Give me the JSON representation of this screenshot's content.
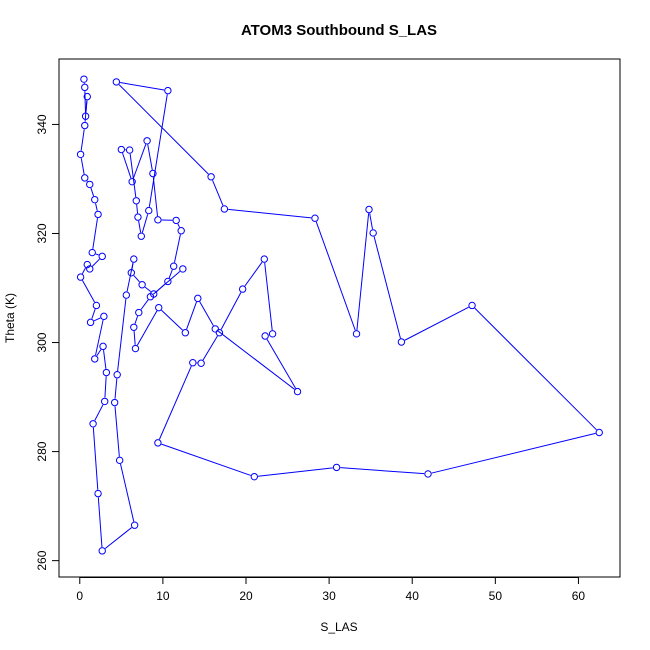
{
  "chart_data": {
    "type": "line",
    "title": "ATOM3 Southbound S_LAS",
    "xlabel": "S_LAS",
    "ylabel": "Theta (K)",
    "xlim": [
      -2.5,
      65
    ],
    "ylim": [
      257,
      352
    ],
    "xticks": [
      0,
      10,
      20,
      30,
      40,
      50,
      60
    ],
    "yticks": [
      260,
      280,
      300,
      320,
      340
    ],
    "grid": false,
    "legend": "none",
    "colors": {
      "series": "#0000ff",
      "axes": "#000000",
      "background": "#ffffff"
    },
    "markers": "open-circle",
    "series": [
      {
        "points": [
          [
            0.5,
            348.3
          ],
          [
            0.6,
            346.8
          ],
          [
            0.7,
            341.5
          ],
          [
            0.9,
            345.1
          ],
          [
            0.6,
            339.8
          ],
          [
            0.1,
            334.5
          ],
          [
            0.6,
            330.2
          ],
          [
            1.2,
            329.0
          ],
          [
            1.8,
            326.2
          ],
          [
            2.2,
            323.5
          ],
          [
            1.5,
            316.5
          ],
          [
            2.7,
            315.8
          ],
          [
            1.2,
            313.5
          ],
          [
            0.9,
            314.3
          ],
          [
            0.1,
            312.0
          ],
          [
            2.0,
            306.8
          ],
          [
            1.3,
            303.7
          ],
          [
            2.9,
            304.8
          ],
          [
            1.8,
            297.0
          ],
          [
            2.8,
            299.3
          ],
          [
            3.2,
            294.5
          ],
          [
            3.0,
            289.2
          ],
          [
            1.6,
            285.1
          ],
          [
            2.2,
            272.3
          ],
          [
            2.7,
            261.8
          ],
          [
            6.6,
            266.5
          ],
          [
            4.8,
            278.4
          ],
          [
            4.2,
            289.0
          ],
          [
            4.5,
            294.1
          ],
          [
            5.6,
            308.7
          ],
          [
            6.5,
            315.3
          ],
          [
            6.2,
            312.8
          ],
          [
            7.5,
            310.6
          ],
          [
            8.9,
            308.9
          ],
          [
            10.6,
            311.2
          ],
          [
            11.3,
            314.0
          ],
          [
            12.2,
            320.5
          ],
          [
            11.6,
            322.4
          ],
          [
            9.4,
            322.5
          ],
          [
            8.8,
            331.0
          ],
          [
            8.1,
            337.0
          ],
          [
            6.3,
            329.5
          ],
          [
            5.0,
            335.4
          ],
          [
            6.0,
            335.3
          ],
          [
            6.8,
            326.0
          ],
          [
            7.0,
            323.0
          ],
          [
            7.4,
            319.5
          ],
          [
            8.3,
            324.2
          ],
          [
            10.6,
            346.2
          ],
          [
            4.4,
            347.8
          ],
          [
            15.8,
            330.4
          ],
          [
            17.4,
            324.5
          ],
          [
            28.3,
            322.8
          ],
          [
            33.3,
            301.6
          ],
          [
            34.8,
            324.4
          ],
          [
            35.3,
            320.1
          ],
          [
            38.7,
            300.1
          ],
          [
            47.2,
            306.8
          ],
          [
            62.5,
            283.5
          ],
          [
            41.9,
            275.9
          ],
          [
            30.9,
            277.1
          ],
          [
            21.0,
            275.4
          ],
          [
            9.4,
            281.6
          ],
          [
            13.6,
            296.3
          ],
          [
            14.6,
            296.2
          ],
          [
            16.8,
            301.8
          ],
          [
            19.6,
            309.8
          ],
          [
            22.2,
            315.3
          ],
          [
            23.2,
            301.6
          ],
          [
            22.3,
            301.2
          ],
          [
            26.2,
            291.0
          ],
          [
            16.3,
            302.5
          ],
          [
            14.2,
            308.1
          ],
          [
            12.7,
            301.8
          ],
          [
            9.5,
            306.4
          ],
          [
            6.7,
            298.9
          ],
          [
            6.5,
            302.8
          ],
          [
            7.1,
            305.5
          ],
          [
            8.5,
            308.4
          ],
          [
            12.4,
            313.5
          ]
        ]
      }
    ]
  }
}
